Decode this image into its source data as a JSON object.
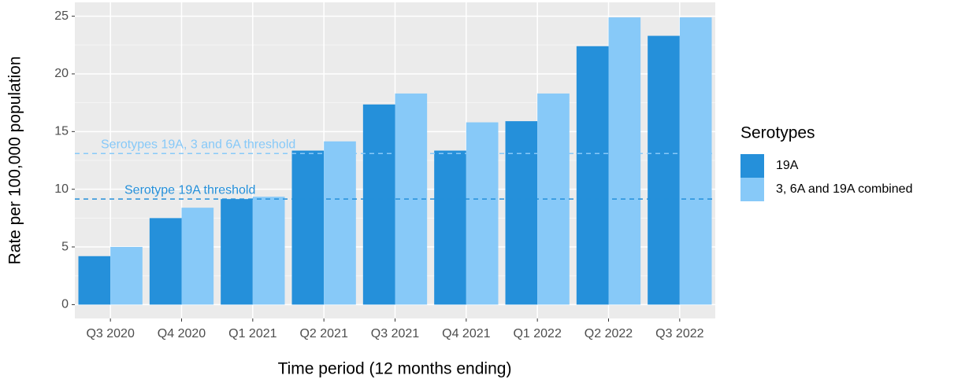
{
  "chart_data": {
    "type": "bar",
    "x_label": "Time period (12 months ending)",
    "y_label": "Rate per 100,000 population",
    "categories": [
      "Q3 2020",
      "Q4 2020",
      "Q1 2021",
      "Q2 2021",
      "Q3 2021",
      "Q4 2021",
      "Q1 2022",
      "Q2 2022",
      "Q3 2022"
    ],
    "series": [
      {
        "name": "19A",
        "color": "#2590da",
        "values": [
          4.2,
          7.5,
          9.15,
          13.35,
          17.35,
          13.35,
          15.9,
          22.4,
          23.3
        ]
      },
      {
        "name": "3, 6A and 19A combined",
        "color": "#87c9f8",
        "values": [
          5.0,
          8.4,
          9.35,
          14.15,
          18.3,
          15.8,
          18.3,
          24.9,
          24.9
        ]
      }
    ],
    "thresholds": [
      {
        "label": "Serotypes 19A, 3 and 6A threshold",
        "value": 13.1,
        "color": "#87c9f8"
      },
      {
        "label": "Serotype 19A threshold",
        "value": 9.15,
        "color": "#2590da"
      }
    ],
    "legend_title": "Serotypes",
    "legend": "right",
    "ylim": [
      -1.2,
      26.2
    ],
    "yticks": [
      0,
      5,
      10,
      15,
      20,
      25
    ],
    "grid": true
  }
}
